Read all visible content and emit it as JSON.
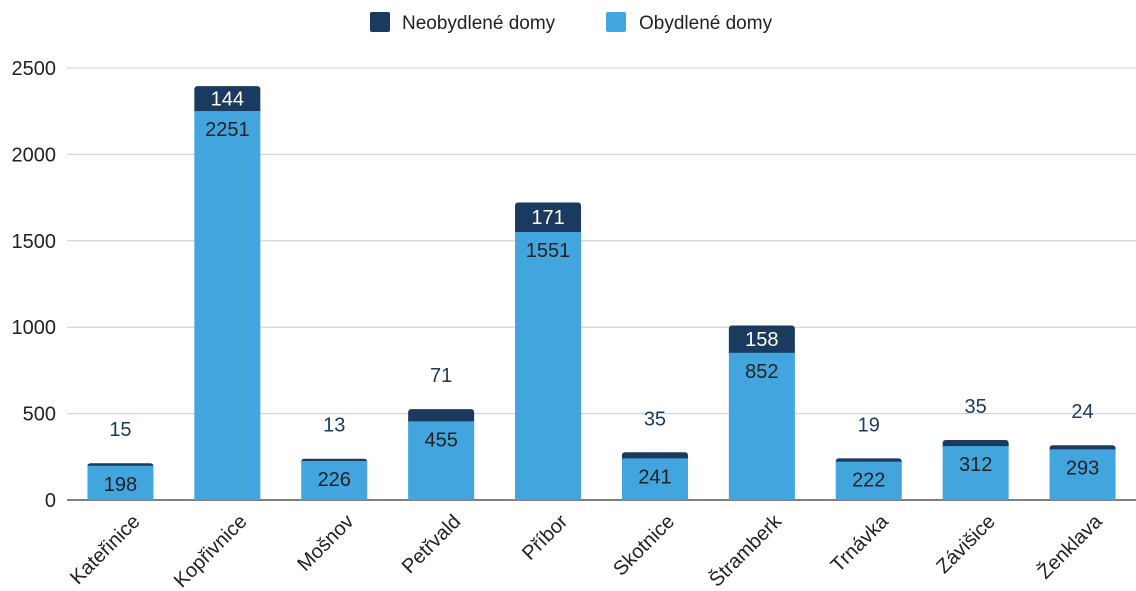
{
  "chart_data": {
    "type": "bar",
    "stacked": true,
    "categories": [
      "Kateřinice",
      "Kopřivnice",
      "Mošnov",
      "Petřvald",
      "Příbor",
      "Skotnice",
      "Štramberk",
      "Trnávka",
      "Závišice",
      "Ženklava"
    ],
    "series": [
      {
        "name": "Obydlené domy",
        "color": "#42a5de",
        "values": [
          198,
          2251,
          226,
          455,
          1551,
          241,
          852,
          222,
          312,
          293
        ]
      },
      {
        "name": "Neobydlené domy",
        "color": "#1a3a5f",
        "values": [
          15,
          144,
          13,
          71,
          171,
          35,
          158,
          19,
          35,
          24
        ]
      }
    ],
    "ylim": [
      0,
      2500
    ],
    "yticks": [
      "0",
      "500",
      "1000",
      "1500",
      "2000",
      "2500"
    ],
    "grid": true,
    "legend_position": "top",
    "label_dark_color": "#1a3a5f"
  }
}
